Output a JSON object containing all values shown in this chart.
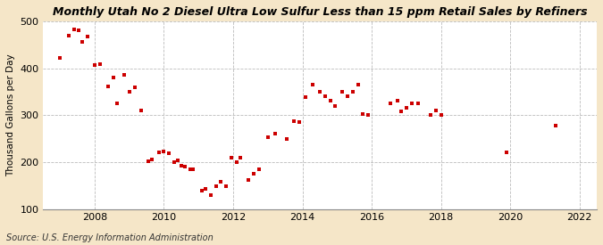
{
  "title": "Monthly Utah No 2 Diesel Ultra Low Sulfur Less than 15 ppm Retail Sales by Refiners",
  "ylabel": "Thousand Gallons per Day",
  "source": "Source: U.S. Energy Information Administration",
  "fig_bg_color": "#f5e6c8",
  "plot_bg_color": "#ffffff",
  "marker_color": "#cc0000",
  "xlim": [
    2006.5,
    2022.5
  ],
  "ylim": [
    100,
    500
  ],
  "yticks": [
    100,
    200,
    300,
    400,
    500
  ],
  "xticks": [
    2008,
    2010,
    2012,
    2014,
    2016,
    2018,
    2020,
    2022
  ],
  "data_points": [
    [
      2007.0,
      422
    ],
    [
      2007.25,
      470
    ],
    [
      2007.4,
      483
    ],
    [
      2007.55,
      480
    ],
    [
      2007.65,
      456
    ],
    [
      2007.8,
      468
    ],
    [
      2008.0,
      406
    ],
    [
      2008.15,
      408
    ],
    [
      2008.4,
      362
    ],
    [
      2008.55,
      380
    ],
    [
      2008.65,
      325
    ],
    [
      2008.85,
      385
    ],
    [
      2009.0,
      350
    ],
    [
      2009.15,
      360
    ],
    [
      2009.35,
      310
    ],
    [
      2009.55,
      201
    ],
    [
      2009.65,
      205
    ],
    [
      2009.85,
      220
    ],
    [
      2010.0,
      222
    ],
    [
      2010.15,
      218
    ],
    [
      2010.3,
      200
    ],
    [
      2010.4,
      203
    ],
    [
      2010.5,
      193
    ],
    [
      2010.6,
      190
    ],
    [
      2010.75,
      185
    ],
    [
      2010.85,
      185
    ],
    [
      2011.1,
      140
    ],
    [
      2011.2,
      143
    ],
    [
      2011.35,
      130
    ],
    [
      2011.5,
      148
    ],
    [
      2011.65,
      158
    ],
    [
      2011.8,
      148
    ],
    [
      2011.95,
      210
    ],
    [
      2012.1,
      200
    ],
    [
      2012.2,
      210
    ],
    [
      2012.45,
      162
    ],
    [
      2012.6,
      175
    ],
    [
      2012.75,
      185
    ],
    [
      2013.0,
      253
    ],
    [
      2013.2,
      260
    ],
    [
      2013.55,
      250
    ],
    [
      2013.75,
      288
    ],
    [
      2013.9,
      285
    ],
    [
      2014.1,
      338
    ],
    [
      2014.3,
      365
    ],
    [
      2014.5,
      350
    ],
    [
      2014.65,
      340
    ],
    [
      2014.8,
      330
    ],
    [
      2014.95,
      320
    ],
    [
      2015.15,
      350
    ],
    [
      2015.3,
      340
    ],
    [
      2015.45,
      350
    ],
    [
      2015.6,
      365
    ],
    [
      2015.75,
      302
    ],
    [
      2015.9,
      300
    ],
    [
      2016.55,
      325
    ],
    [
      2016.75,
      330
    ],
    [
      2016.85,
      308
    ],
    [
      2017.0,
      315
    ],
    [
      2017.15,
      325
    ],
    [
      2017.35,
      325
    ],
    [
      2017.7,
      300
    ],
    [
      2017.85,
      310
    ],
    [
      2018.0,
      300
    ],
    [
      2019.9,
      220
    ],
    [
      2021.3,
      278
    ]
  ]
}
